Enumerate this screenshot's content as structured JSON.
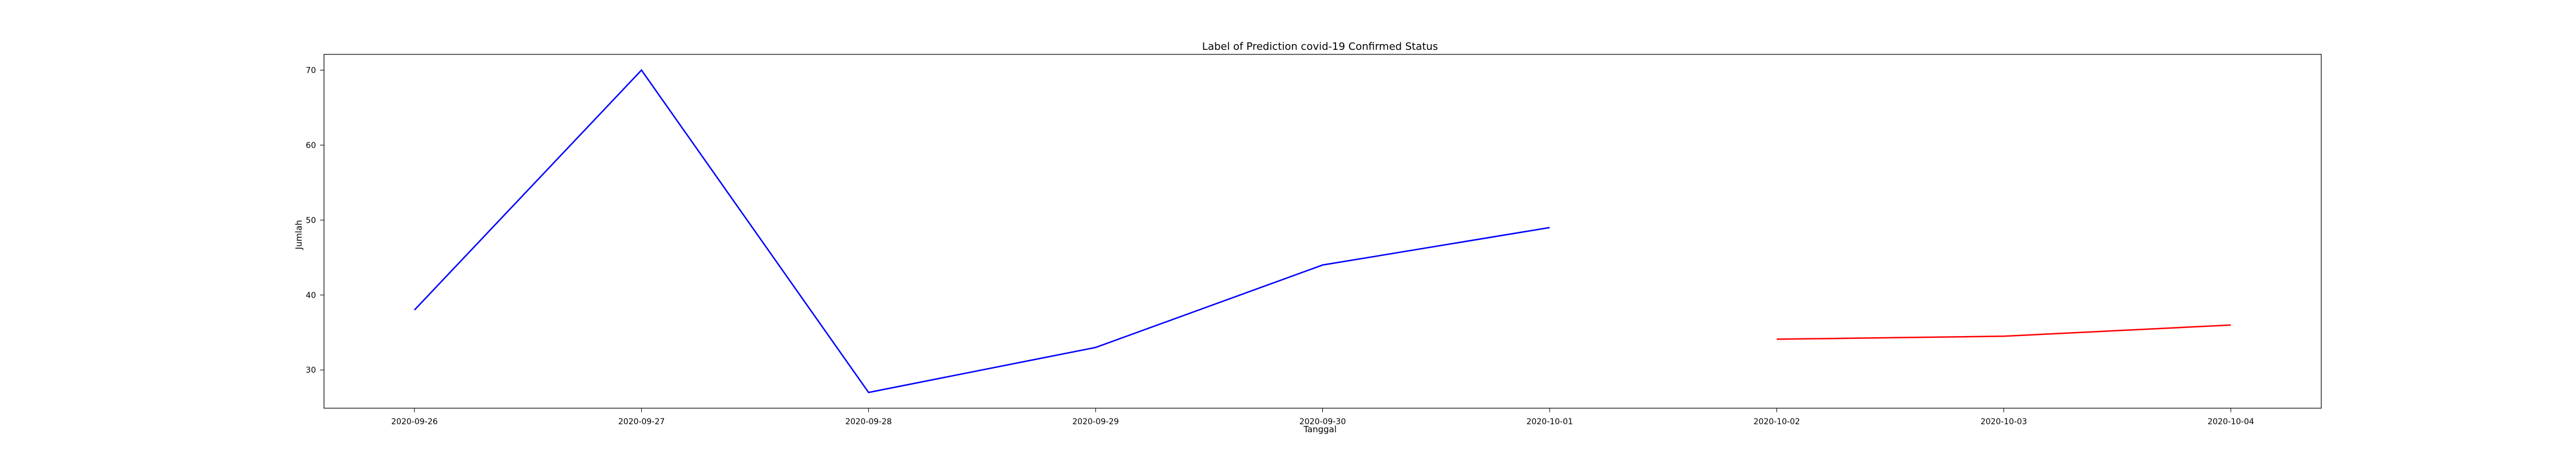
{
  "chart_data": {
    "type": "line",
    "title": "Label of Prediction covid-19 Confirmed Status",
    "xlabel": "Tanggal",
    "ylabel": "Jumlah",
    "grid": false,
    "legend": "none",
    "x_ticks": [
      "2020-09-26",
      "2020-09-27",
      "2020-09-28",
      "2020-09-29",
      "2020-09-30",
      "2020-10-01",
      "2020-10-02",
      "2020-10-03",
      "2020-10-04"
    ],
    "y_ticks": [
      30,
      40,
      50,
      60,
      70
    ],
    "ylim": [
      24.9,
      72.1
    ],
    "series": [
      {
        "color": "#0000ff",
        "points": [
          {
            "x": "2020-09-26",
            "y": 38
          },
          {
            "x": "2020-09-27",
            "y": 70
          },
          {
            "x": "2020-09-28",
            "y": 27
          },
          {
            "x": "2020-09-29",
            "y": 33
          },
          {
            "x": "2020-09-30",
            "y": 44
          },
          {
            "x": "2020-10-01",
            "y": 49
          }
        ]
      },
      {
        "color": "#ff0000",
        "points": [
          {
            "x": "2020-10-02",
            "y": 34.1
          },
          {
            "x": "2020-10-03",
            "y": 34.5
          },
          {
            "x": "2020-10-04",
            "y": 36.0
          }
        ]
      }
    ]
  }
}
